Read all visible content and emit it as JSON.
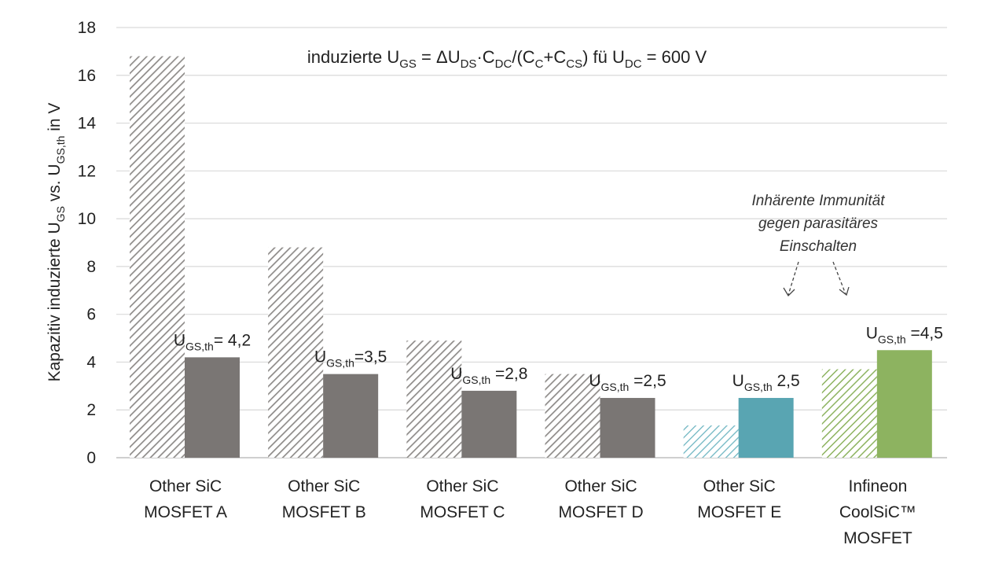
{
  "chart_data": {
    "type": "bar",
    "title_parts": [
      "induzierte U",
      "GS",
      " = ΔU",
      "DS",
      "·C",
      "DC",
      "/(C",
      "C",
      "+C",
      "CS",
      ") fü U",
      "DC",
      " = 600 V"
    ],
    "ylabel_parts": [
      "Kapazitiv induzierte U",
      "GS",
      " vs. U",
      "GS,th",
      " in V"
    ],
    "ylim": [
      0,
      18
    ],
    "yticks": [
      0,
      2,
      4,
      6,
      8,
      10,
      12,
      14,
      16,
      18
    ],
    "grid": true,
    "categories": [
      [
        "Other SiC",
        "MOSFET A"
      ],
      [
        "Other SiC",
        "MOSFET B"
      ],
      [
        "Other SiC",
        "MOSFET C"
      ],
      [
        "Other SiC",
        "MOSFET D"
      ],
      [
        "Other SiC",
        "MOSFET E"
      ],
      [
        "Infineon",
        "CoolSiC™",
        "MOSFET"
      ]
    ],
    "series": [
      {
        "values": [
          16.8,
          8.8,
          4.9,
          3.5,
          1.35,
          3.7
        ],
        "fills": [
          "hatch-gray",
          "hatch-gray",
          "hatch-gray",
          "hatch-gray",
          "hatch-teal",
          "hatch-green"
        ]
      },
      {
        "values": [
          4.2,
          3.5,
          2.8,
          2.5,
          2.5,
          4.5
        ],
        "fills": [
          "#7a7674",
          "#7a7674",
          "#7a7674",
          "#7a7674",
          "#59a5b2",
          "#8db360"
        ],
        "labels": [
          {
            "main": "U",
            "sub": "GS,th",
            "value": "= 4,2"
          },
          {
            "main": "U",
            "sub": "GS,th",
            "value": "=3,5"
          },
          {
            "main": "U",
            "sub": "GS,th",
            "value": " =2,8"
          },
          {
            "main": "U",
            "sub": "GS,th",
            "value": " =2,5"
          },
          {
            "main": "U",
            "sub": "GS,th",
            "value": " 2,5"
          },
          {
            "main": "U",
            "sub": "GS,th",
            "value": " =4,5"
          }
        ]
      }
    ],
    "colors": {
      "gray_bar": "#7a7674",
      "gray_hatch": "#8e8b89",
      "teal_bar": "#59a5b2",
      "teal_hatch": "#6fb6c2",
      "green_bar": "#8db360",
      "green_hatch": "#8db360",
      "grid": "#d9d9d9"
    },
    "annotation": {
      "lines": [
        "Inhärente Immunität",
        "gegen parasitäres",
        "Einschalten"
      ]
    }
  }
}
